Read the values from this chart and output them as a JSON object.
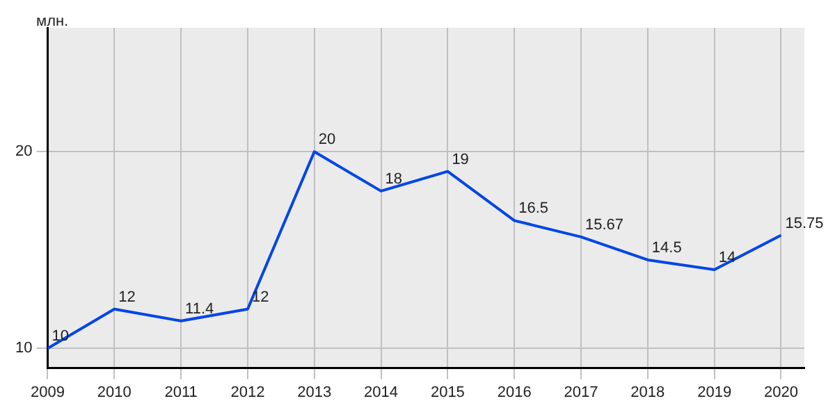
{
  "chart_data": {
    "type": "line",
    "ylabel": "млн.",
    "x": [
      2009,
      2010,
      2011,
      2012,
      2013,
      2014,
      2015,
      2016,
      2017,
      2018,
      2019,
      2020
    ],
    "series": [
      {
        "color": "#0046e6",
        "values": [
          10,
          12,
          11.4,
          12,
          20,
          18,
          19,
          16.5,
          15.67,
          14.5,
          14,
          15.75
        ]
      }
    ],
    "xlim": [
      2009,
      2020.35
    ],
    "xticks": [
      2009,
      2010,
      2011,
      2012,
      2013,
      2014,
      2015,
      2016,
      2017,
      2018,
      2019,
      2020
    ],
    "ylim": [
      9,
      26.3
    ],
    "yticks": [
      10,
      20
    ],
    "grid": true,
    "legend": false,
    "marker": "none",
    "line_style": "solid",
    "data_labels": true
  }
}
